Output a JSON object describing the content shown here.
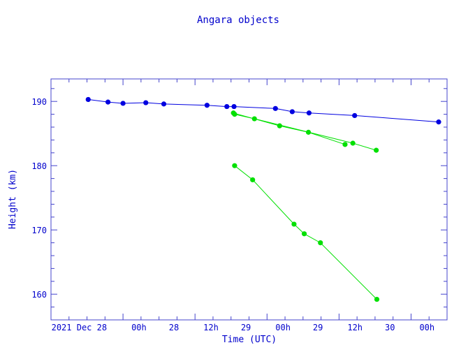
{
  "chart_data": {
    "type": "line",
    "title": "Angara objects",
    "xlabel": "Time (UTC)",
    "ylabel": "Height (km)",
    "x_unit": "hours",
    "xlim": [
      -12,
      54
    ],
    "ylim": [
      156,
      193.5
    ],
    "x_ticks": [
      {
        "x": 0,
        "label": "2021 Dec 28  00h"
      },
      {
        "x": 12,
        "label": "28  12h"
      },
      {
        "x": 24,
        "label": "29  00h"
      },
      {
        "x": 36,
        "label": "29  12h"
      },
      {
        "x": 48,
        "label": "30  00h"
      }
    ],
    "y_ticks": [
      160,
      170,
      180,
      190
    ],
    "grid": false,
    "series": [
      {
        "color": "#0000e0",
        "points": [
          [
            -5.8,
            190.3
          ],
          [
            -2.5,
            189.9
          ],
          [
            0.0,
            189.7
          ],
          [
            3.8,
            189.8
          ],
          [
            6.8,
            189.6
          ],
          [
            14.0,
            189.4
          ],
          [
            17.3,
            189.2
          ],
          [
            18.5,
            189.2
          ],
          [
            25.4,
            188.9
          ],
          [
            28.2,
            188.4
          ],
          [
            31.0,
            188.2
          ],
          [
            38.6,
            187.8
          ],
          [
            52.6,
            186.8
          ]
        ]
      },
      {
        "color": "#00e000",
        "points": [
          [
            18.4,
            188.2
          ],
          [
            26.1,
            186.2
          ],
          [
            30.9,
            185.2
          ],
          [
            37.0,
            183.3
          ]
        ]
      },
      {
        "color": "#00e000",
        "points": [
          [
            18.6,
            188.0
          ],
          [
            21.9,
            187.3
          ],
          [
            38.3,
            183.5
          ],
          [
            42.2,
            182.4
          ]
        ]
      },
      {
        "color": "#00e000",
        "points": [
          [
            18.6,
            180.0
          ],
          [
            21.6,
            177.8
          ],
          [
            28.5,
            170.9
          ],
          [
            30.2,
            169.4
          ],
          [
            32.9,
            168.0
          ],
          [
            42.3,
            159.2
          ]
        ]
      }
    ]
  }
}
